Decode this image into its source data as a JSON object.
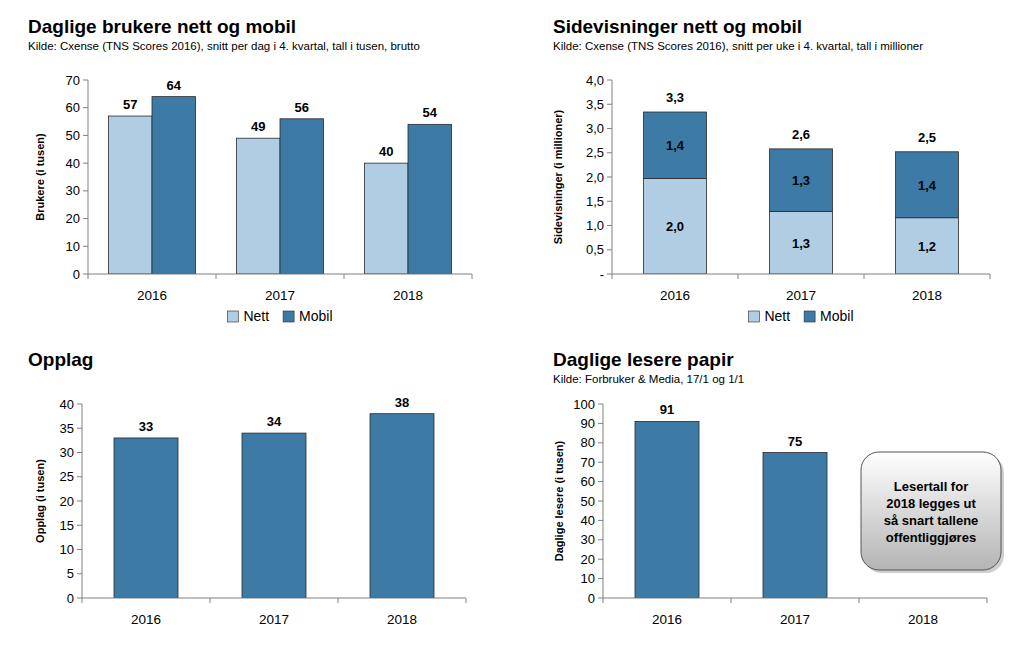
{
  "chart_data": [
    {
      "type": "bar",
      "title": "Daglige brukere nett og mobil",
      "subtitle": "Kilde: Cxense (TNS Scores 2016), snitt per dag i 4. kvartal, tall i tusen, brutto",
      "y_label": "Brukere (i tusen)",
      "categories": [
        "2016",
        "2017",
        "2018"
      ],
      "series": [
        {
          "name": "Nett",
          "color": "#b0cde3",
          "values": [
            57,
            49,
            40
          ]
        },
        {
          "name": "Mobil",
          "color": "#3d7aa6",
          "values": [
            64,
            56,
            54
          ]
        }
      ],
      "ylim": [
        0,
        70
      ],
      "yticks": [
        0,
        10,
        20,
        30,
        40,
        50,
        60,
        70
      ],
      "grid": false,
      "data_labels": true,
      "legend": "bottom"
    },
    {
      "type": "bar",
      "title": "Sidevisninger nett og mobil",
      "subtitle": "Kilde: Cxense (TNS Scores 2016), snitt per uke i 4. kvartal, tall i millioner",
      "y_label": "Sidevisninger (i millioner)",
      "categories": [
        "2016",
        "2017",
        "2018"
      ],
      "series": [
        {
          "name": "Nett",
          "color": "#b0cde3",
          "values": [
            1.97,
            1.29,
            1.16
          ],
          "value_labels": [
            "2,0",
            "1,3",
            "1,2"
          ]
        },
        {
          "name": "Mobil",
          "color": "#3d7aa6",
          "values": [
            1.37,
            1.29,
            1.36
          ],
          "value_labels": [
            "1,4",
            "1,3",
            "1,4"
          ]
        }
      ],
      "totals": [
        3.34,
        2.58,
        2.52
      ],
      "total_labels": [
        "3,3",
        "2,6",
        "2,5"
      ],
      "ylim": [
        0,
        4
      ],
      "yticks": [
        {
          "value": 0,
          "label": "-"
        },
        {
          "value": 0.5,
          "label": "0,5"
        },
        {
          "value": 1,
          "label": "1,0"
        },
        {
          "value": 1.5,
          "label": "1,5"
        },
        {
          "value": 2,
          "label": "2,0"
        },
        {
          "value": 2.5,
          "label": "2,5"
        },
        {
          "value": 3,
          "label": "3,0"
        },
        {
          "value": 3.5,
          "label": "3,5"
        },
        {
          "value": 4,
          "label": "4,0"
        }
      ],
      "stacked": true,
      "grid": false,
      "data_labels": true,
      "legend": "bottom"
    },
    {
      "type": "bar",
      "title": "Opplag",
      "y_label": "Opplag (i tusen)",
      "categories": [
        "2016",
        "2017",
        "2018"
      ],
      "values": [
        33,
        34,
        38
      ],
      "color": "#3d7aa6",
      "ylim": [
        0,
        40
      ],
      "yticks": [
        0,
        5,
        10,
        15,
        20,
        25,
        30,
        35,
        40
      ],
      "grid": false,
      "data_labels": true
    },
    {
      "type": "bar",
      "title": "Daglige lesere papir",
      "subtitle": "Kilde: Forbruker & Media, 17/1 og 1/1",
      "y_label": "Daglige lesere (i tusen)",
      "categories": [
        "2016",
        "2017",
        "2018"
      ],
      "values": [
        91,
        75,
        null
      ],
      "color": "#3d7aa6",
      "ylim": [
        0,
        100
      ],
      "yticks": [
        0,
        10,
        20,
        30,
        40,
        50,
        60,
        70,
        80,
        90,
        100
      ],
      "annotation": [
        "Lesertall for",
        "2018 legges ut",
        "så snart tallene",
        "offentliggjøres"
      ],
      "grid": false,
      "data_labels": true
    }
  ]
}
